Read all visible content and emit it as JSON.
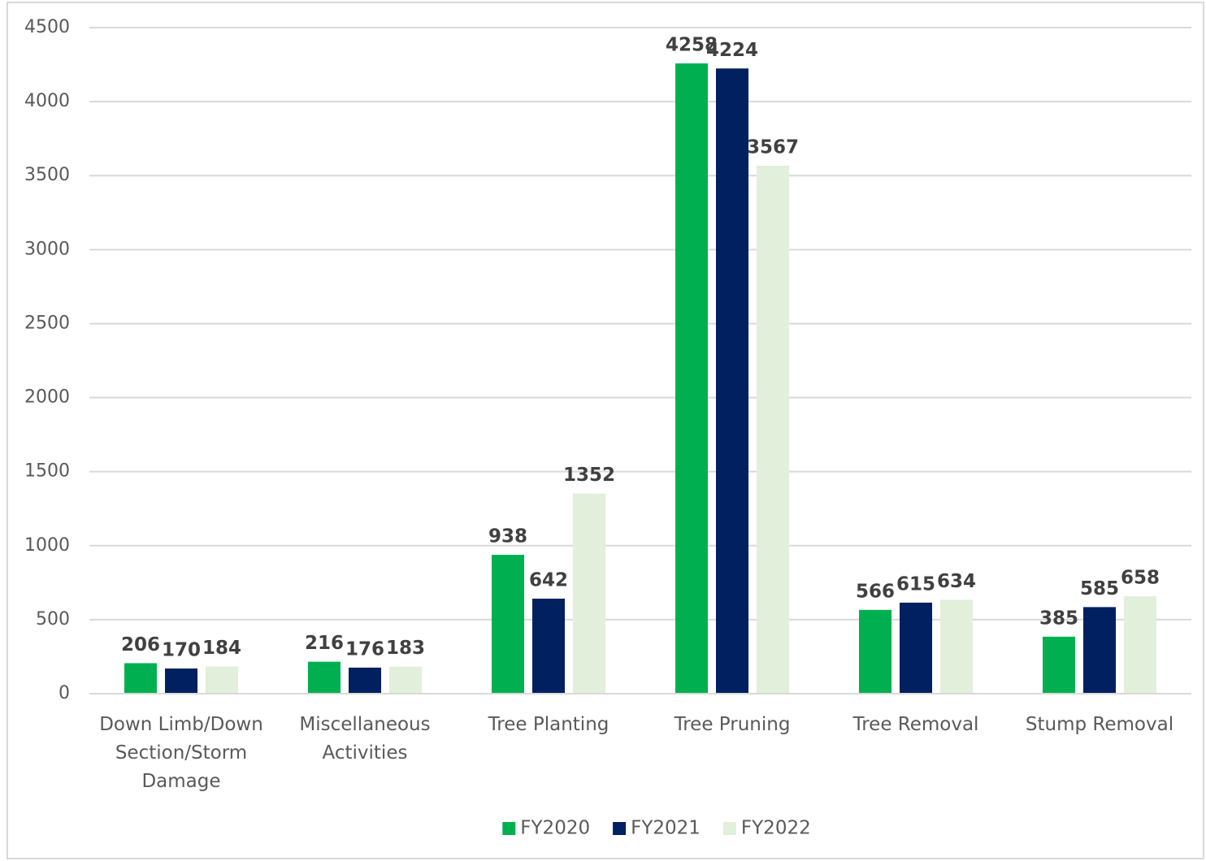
{
  "chart_data": {
    "type": "bar",
    "categories": [
      "Down Limb/Down Section/Storm Damage",
      "Miscellaneous Activities",
      "Tree Planting",
      "Tree Pruning",
      "Tree Removal",
      "Stump Removal"
    ],
    "series": [
      {
        "name": "FY2020",
        "color": "#00b050",
        "values": [
          206,
          216,
          938,
          4258,
          566,
          385
        ]
      },
      {
        "name": "FY2021",
        "color": "#002060",
        "values": [
          170,
          176,
          642,
          4224,
          615,
          585
        ]
      },
      {
        "name": "FY2022",
        "color": "#e2efda",
        "values": [
          184,
          183,
          1352,
          3567,
          634,
          658
        ]
      }
    ],
    "ylim": [
      0,
      4500
    ],
    "yticks": [
      0,
      500,
      1000,
      1500,
      2000,
      2500,
      3000,
      3500,
      4000,
      4500
    ],
    "grid": true,
    "legend": "bottom"
  }
}
